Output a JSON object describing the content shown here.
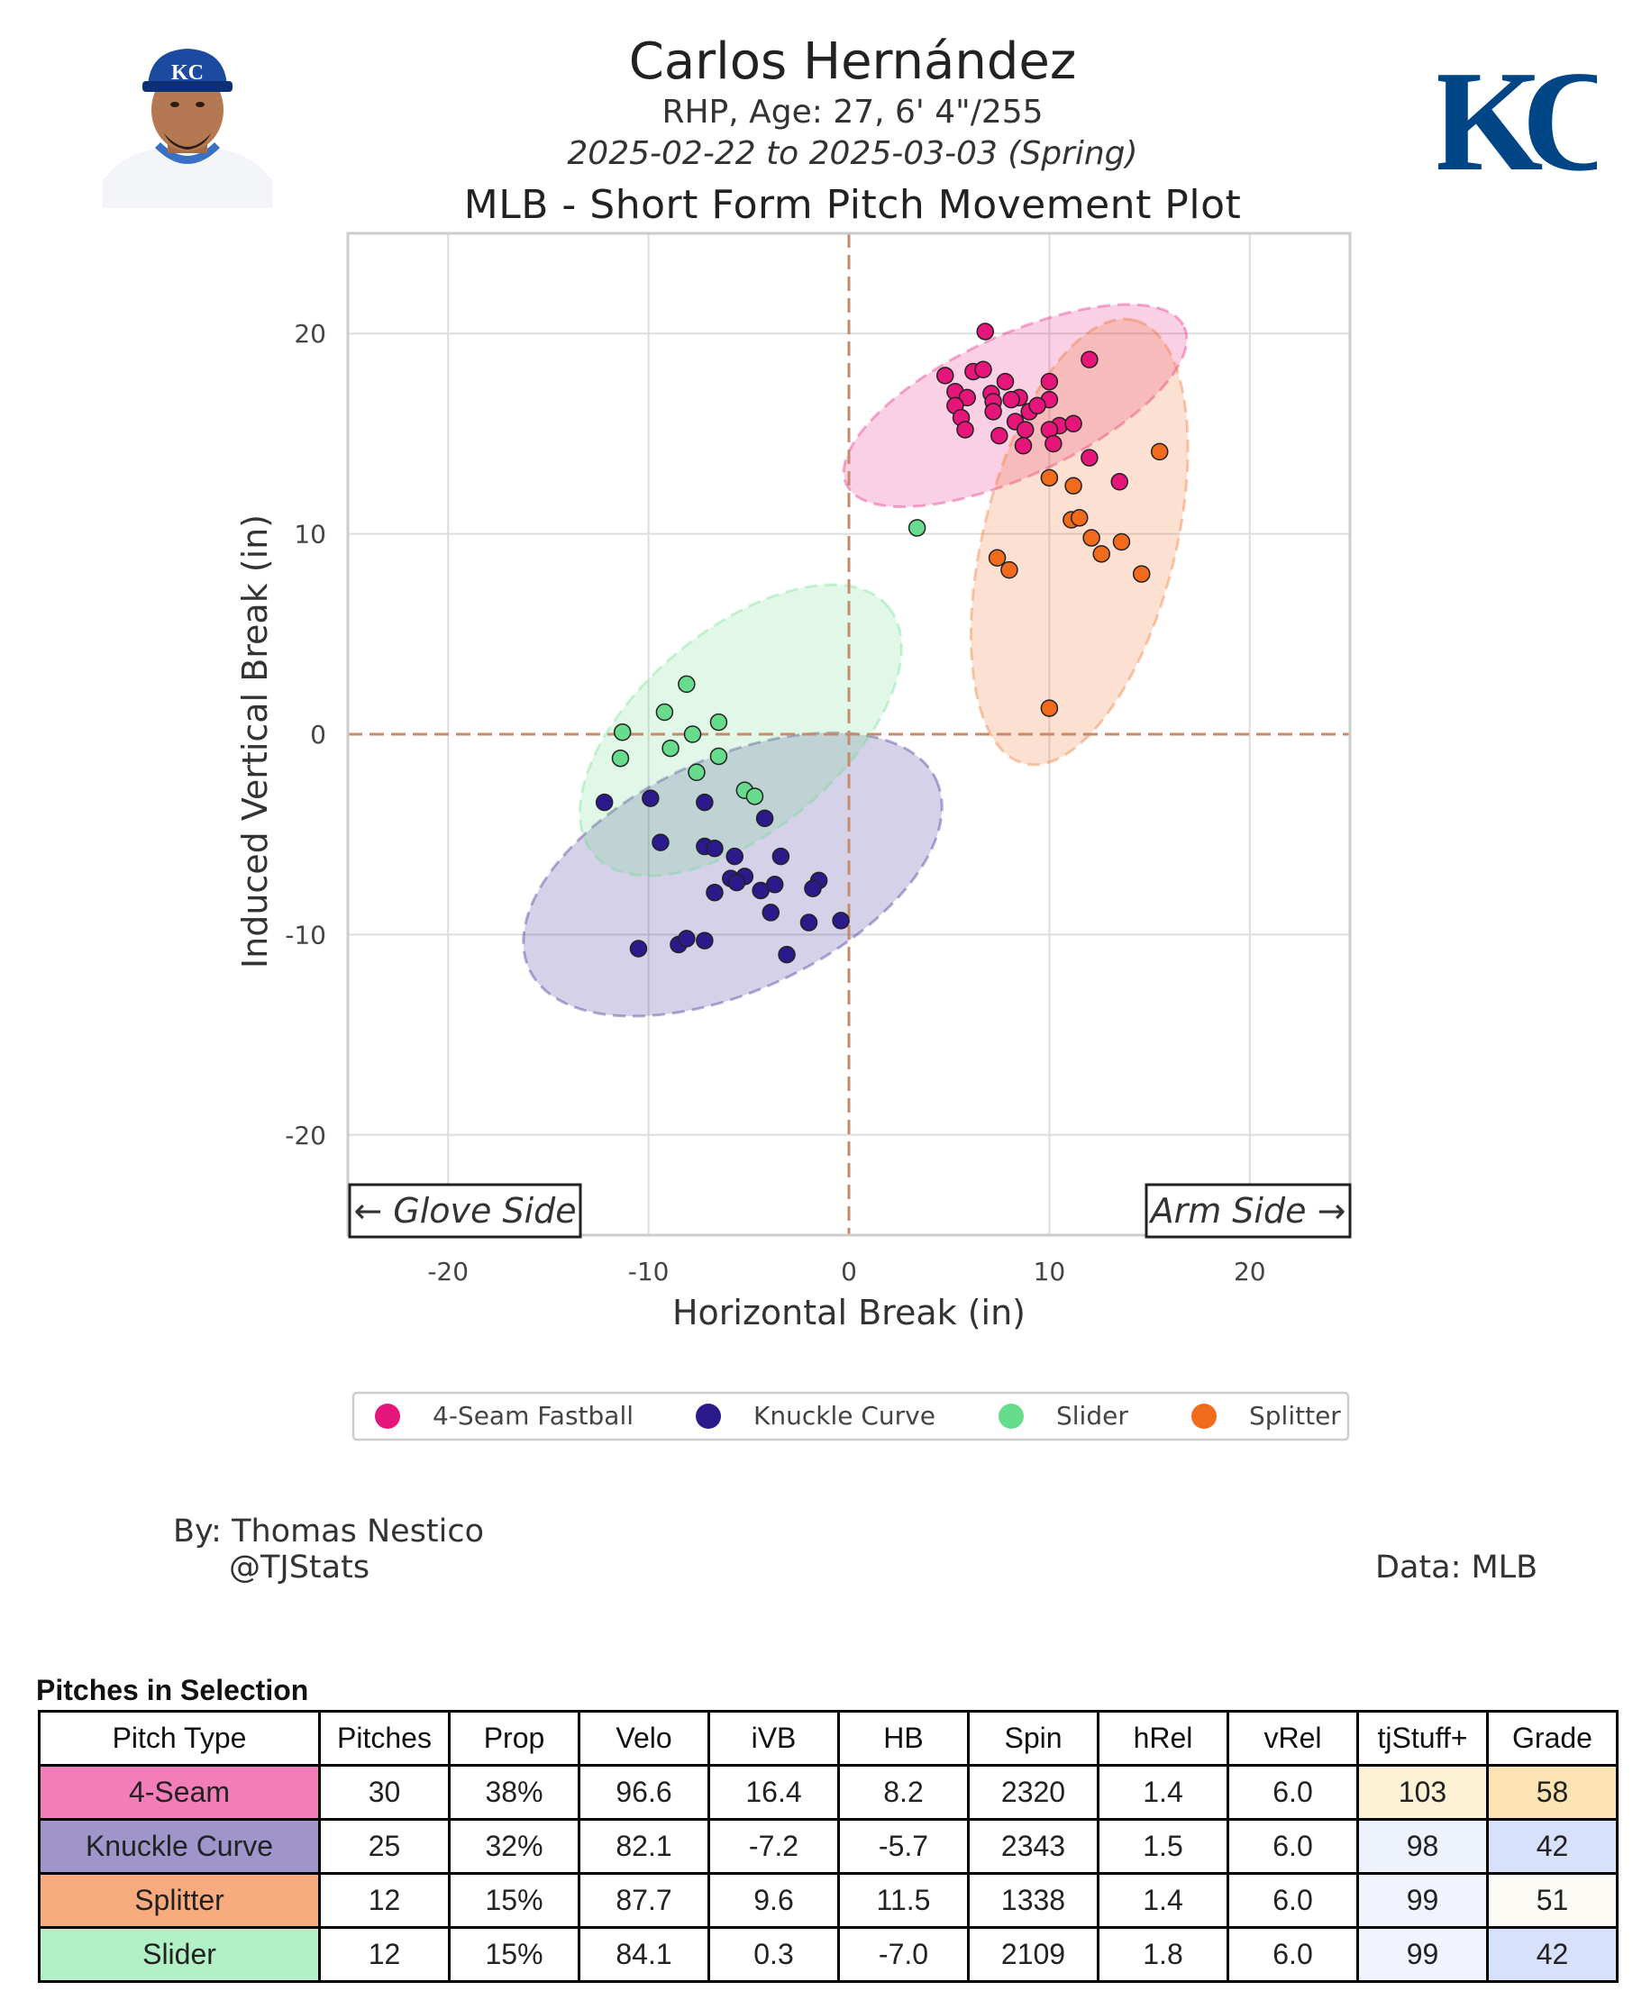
{
  "header": {
    "name": "Carlos Hernández",
    "bio": "RHP, Age: 27, 6' 4\"/255",
    "dates": "2025-02-22 to 2025-03-03 (Spring)",
    "plot_title": "MLB - Short Form Pitch Movement Plot",
    "logo_text": "KC",
    "cap_logo_text": "KC"
  },
  "colors": {
    "4-Seam": "#e6157a",
    "Knuckle Curve": "#2b1a8b",
    "Slider": "#67dc8c",
    "Splitter": "#f26b1d",
    "royals_blue": "#004687"
  },
  "chart_data": {
    "type": "scatter",
    "title": "MLB - Short Form Pitch Movement Plot",
    "xlabel": "Horizontal Break (in)",
    "ylabel": "Induced Vertical Break (in)",
    "xlim": [
      -25,
      25
    ],
    "ylim": [
      -25,
      25
    ],
    "x_ticks": [
      "-20",
      "-10",
      "0",
      "10",
      "20"
    ],
    "y_ticks": [
      "20",
      "10",
      "0",
      "-10",
      "-20"
    ],
    "grid": true,
    "legend_position": "bottom",
    "annotations": {
      "glove_side": "← Glove Side",
      "arm_side": "Arm Side →"
    },
    "series": [
      {
        "name": "4-Seam Fastball",
        "color": "#e6157a",
        "ellipse": {
          "cx": 8.3,
          "cy": 16.4,
          "rx": 9.3,
          "ry": 3.5,
          "angle": -25
        },
        "points": [
          [
            6.8,
            20.1
          ],
          [
            12,
            18.7
          ],
          [
            4.8,
            17.9
          ],
          [
            6.2,
            18.1
          ],
          [
            6.7,
            18.2
          ],
          [
            7.8,
            17.6
          ],
          [
            10,
            17.6
          ],
          [
            5.3,
            17.1
          ],
          [
            7.1,
            17
          ],
          [
            8.5,
            16.8
          ],
          [
            7.2,
            16.6
          ],
          [
            5.9,
            16.8
          ],
          [
            10,
            16.7
          ],
          [
            5.3,
            16.4
          ],
          [
            9,
            16.1
          ],
          [
            7.2,
            16.1
          ],
          [
            5.6,
            15.8
          ],
          [
            8.3,
            15.6
          ],
          [
            10.5,
            15.4
          ],
          [
            10,
            15.2
          ],
          [
            5.8,
            15.2
          ],
          [
            8.8,
            15.2
          ],
          [
            7.5,
            14.9
          ],
          [
            10.2,
            14.5
          ],
          [
            8.7,
            14.4
          ],
          [
            9.4,
            16.4
          ],
          [
            8.1,
            16.7
          ],
          [
            11.2,
            15.5
          ],
          [
            12,
            13.8
          ],
          [
            13.5,
            12.6
          ]
        ]
      },
      {
        "name": "Knuckle Curve",
        "color": "#2b1a8b",
        "ellipse": {
          "cx": -5.8,
          "cy": -7.0,
          "rx": 11.2,
          "ry": 5.8,
          "angle": -25
        },
        "points": [
          [
            -12.2,
            -3.4
          ],
          [
            -9.9,
            -3.2
          ],
          [
            -7.2,
            -3.4
          ],
          [
            -4.2,
            -4.2
          ],
          [
            -9.4,
            -5.4
          ],
          [
            -7.2,
            -5.6
          ],
          [
            -6.7,
            -5.7
          ],
          [
            -5.7,
            -6.1
          ],
          [
            -3.4,
            -6.1
          ],
          [
            -5.9,
            -7.2
          ],
          [
            -5.2,
            -7.1
          ],
          [
            -5.6,
            -7.4
          ],
          [
            -6.7,
            -7.9
          ],
          [
            -4.4,
            -7.8
          ],
          [
            -3.7,
            -7.5
          ],
          [
            -1.5,
            -7.3
          ],
          [
            -1.8,
            -7.7
          ],
          [
            -3.9,
            -8.9
          ],
          [
            -2,
            -9.4
          ],
          [
            -0.4,
            -9.3
          ],
          [
            -8.5,
            -10.5
          ],
          [
            -8.1,
            -10.2
          ],
          [
            -7.2,
            -10.3
          ],
          [
            -3.1,
            -11
          ],
          [
            -10.5,
            -10.7
          ]
        ]
      },
      {
        "name": "Slider",
        "color": "#67dc8c",
        "ellipse": {
          "cx": -5.4,
          "cy": 0.2,
          "rx": 9.6,
          "ry": 5.0,
          "angle": -40
        },
        "points": [
          [
            -8.1,
            2.5
          ],
          [
            -9.2,
            1.1
          ],
          [
            -6.5,
            0.6
          ],
          [
            -11.3,
            0.1
          ],
          [
            -7.8,
            0
          ],
          [
            -8.9,
            -0.7
          ],
          [
            -6.5,
            -1.1
          ],
          [
            -11.4,
            -1.2
          ],
          [
            -7.6,
            -1.9
          ],
          [
            -5.2,
            -2.8
          ],
          [
            -4.7,
            -3.1
          ],
          [
            3.4,
            10.3
          ]
        ]
      },
      {
        "name": "Splitter",
        "color": "#f26b1d",
        "ellipse": {
          "cx": 11.5,
          "cy": 9.6,
          "rx": 11.4,
          "ry": 4.8,
          "angle": -76
        },
        "points": [
          [
            15.5,
            14.1
          ],
          [
            10,
            12.8
          ],
          [
            11.2,
            12.4
          ],
          [
            11.1,
            10.7
          ],
          [
            11.5,
            10.8
          ],
          [
            12.1,
            9.8
          ],
          [
            13.6,
            9.6
          ],
          [
            12.6,
            9.0
          ],
          [
            14.6,
            8.0
          ],
          [
            7.4,
            8.8
          ],
          [
            8,
            8.2
          ],
          [
            10,
            1.3
          ]
        ]
      }
    ]
  },
  "footer": {
    "by": "By: Thomas Nestico",
    "handle": "@TJStats",
    "data_source": "Data: MLB"
  },
  "table": {
    "title": "Pitches in Selection",
    "columns": [
      "Pitch Type",
      "Pitches",
      "Prop",
      "Velo",
      "iVB",
      "HB",
      "Spin",
      "hRel",
      "vRel",
      "tjStuff+",
      "Grade"
    ],
    "rows": [
      {
        "pitch": "4-Seam",
        "pitches": "30",
        "prop": "38%",
        "velo": "96.6",
        "ivb": "16.4",
        "hb": "8.2",
        "spin": "2320",
        "hrel": "1.4",
        "vrel": "6.0",
        "stuff": "103",
        "grade": "58",
        "pitch_bg": "#f27db8",
        "stuff_bg": "#fdf1d6",
        "grade_bg": "#fbe3b4"
      },
      {
        "pitch": "Knuckle Curve",
        "pitches": "25",
        "prop": "32%",
        "velo": "82.1",
        "ivb": "-7.2",
        "hb": "-5.7",
        "spin": "2343",
        "hrel": "1.5",
        "vrel": "6.0",
        "stuff": "98",
        "grade": "42",
        "pitch_bg": "#9f95cb",
        "stuff_bg": "#eef2fc",
        "grade_bg": "#d8e1fb"
      },
      {
        "pitch": "Splitter",
        "pitches": "12",
        "prop": "15%",
        "velo": "87.7",
        "ivb": "9.6",
        "hb": "11.5",
        "spin": "1338",
        "hrel": "1.4",
        "vrel": "6.0",
        "stuff": "99",
        "grade": "51",
        "pitch_bg": "#f9ab80",
        "stuff_bg": "#f1f4fc",
        "grade_bg": "#fbfaf4"
      },
      {
        "pitch": "Slider",
        "pitches": "12",
        "prop": "15%",
        "velo": "84.1",
        "ivb": "0.3",
        "hb": "-7.0",
        "spin": "2109",
        "hrel": "1.8",
        "vrel": "6.0",
        "stuff": "99",
        "grade": "42",
        "pitch_bg": "#b2f0c5",
        "stuff_bg": "#f1f4fc",
        "grade_bg": "#d8e1fb"
      }
    ]
  }
}
